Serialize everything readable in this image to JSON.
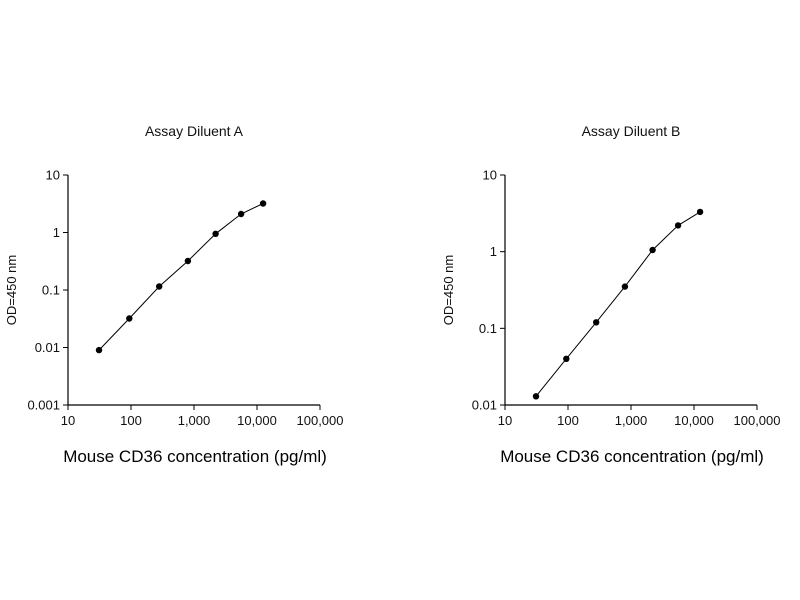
{
  "accent_color": "#000000",
  "chart_data": {
    "charts": [
      {
        "type": "line",
        "title": "Assay Diluent A",
        "xlabel": "Mouse CD36 concentration (pg/ml)",
        "ylabel": "OD=450 nm",
        "x_scale": "log",
        "y_scale": "log",
        "xlim": [
          10,
          100000
        ],
        "ylim": [
          0.001,
          10
        ],
        "x_ticks": [
          "10",
          "100",
          "1,000",
          "10,000",
          "100,000"
        ],
        "y_ticks": [
          "0.001",
          "0.01",
          "0.1",
          "1",
          "10"
        ],
        "x": [
          31,
          94,
          280,
          800,
          2200,
          5600,
          12500
        ],
        "y": [
          0.009,
          0.032,
          0.115,
          0.32,
          0.95,
          2.1,
          3.2
        ],
        "grid": false,
        "legend": "none",
        "marker": "filled-circle"
      },
      {
        "type": "line",
        "title": "Assay Diluent B",
        "xlabel": "Mouse CD36 concentration (pg/ml)",
        "ylabel": "OD=450 nm",
        "x_scale": "log",
        "y_scale": "log",
        "xlim": [
          10,
          100000
        ],
        "ylim": [
          0.01,
          10
        ],
        "x_ticks": [
          "10",
          "100",
          "1,000",
          "10,000",
          "100,000"
        ],
        "y_ticks": [
          "0.01",
          "0.1",
          "1",
          "10"
        ],
        "x": [
          31,
          94,
          280,
          800,
          2200,
          5600,
          12500
        ],
        "y": [
          0.013,
          0.04,
          0.12,
          0.35,
          1.05,
          2.2,
          3.3
        ],
        "grid": false,
        "legend": "none",
        "marker": "filled-circle"
      }
    ]
  }
}
